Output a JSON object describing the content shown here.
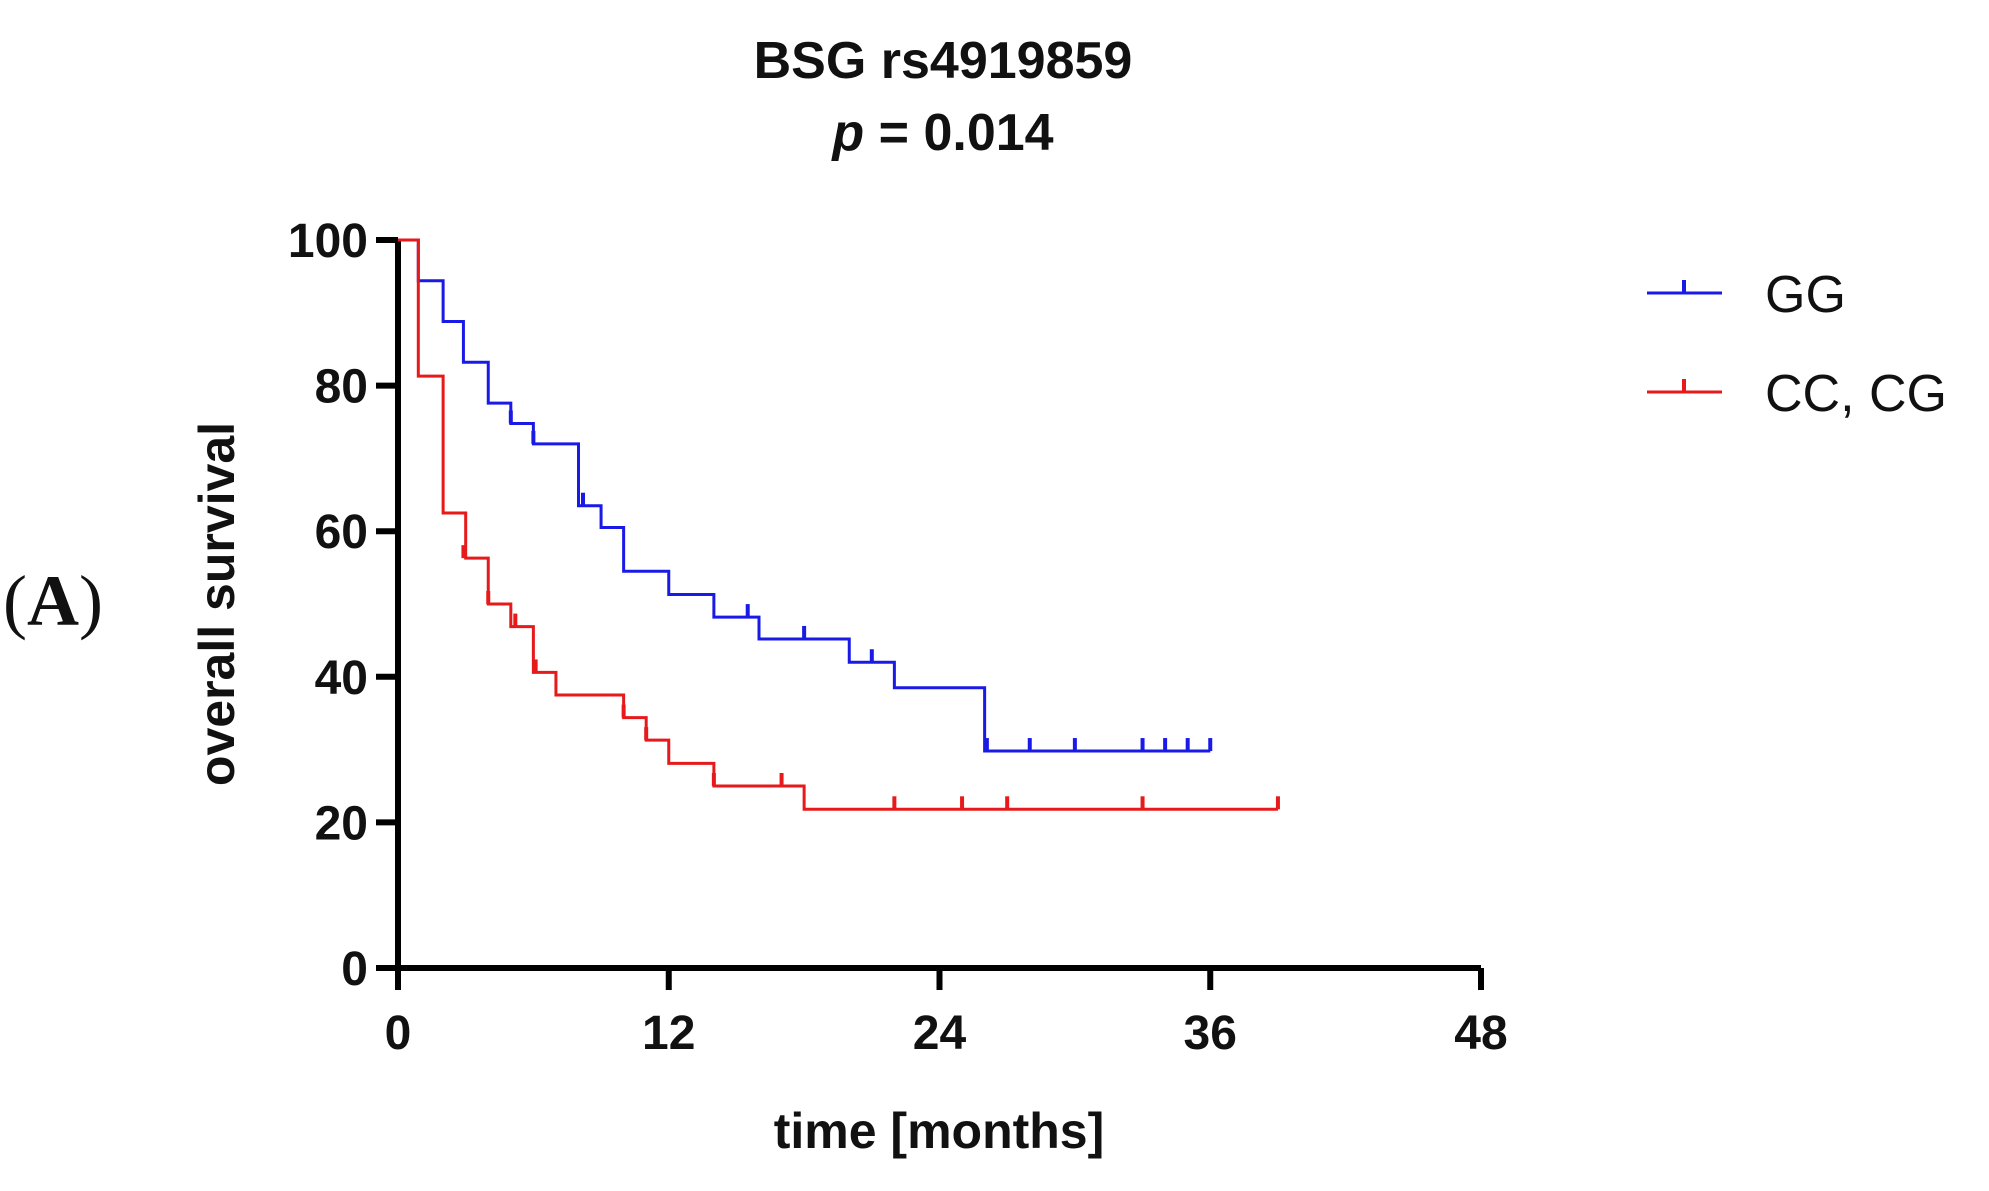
{
  "panel_label": {
    "open": "(",
    "letter": "A",
    "close": ")"
  },
  "chart_data": {
    "type": "line",
    "subtype": "kaplan-meier",
    "title": "BSG rs4919859",
    "subtitle_italic": "p",
    "subtitle_rest": " = 0.014",
    "xlabel": "time [months]",
    "ylabel": "overall survival",
    "xlim": [
      0,
      48
    ],
    "ylim": [
      0,
      100
    ],
    "xticks": [
      0,
      12,
      24,
      36,
      48
    ],
    "yticks": [
      0,
      20,
      40,
      60,
      80,
      100
    ],
    "legend_position": "top-right",
    "series": [
      {
        "name": "GG",
        "color": "#1a1ae6",
        "steps": [
          [
            0,
            100
          ],
          [
            0.9,
            94.4
          ],
          [
            2,
            88.8
          ],
          [
            2.9,
            83.2
          ],
          [
            4,
            77.6
          ],
          [
            5,
            74.8
          ],
          [
            6,
            72
          ],
          [
            8,
            63.5
          ],
          [
            9,
            60.5
          ],
          [
            10,
            54.5
          ],
          [
            12,
            51.3
          ],
          [
            14,
            48.2
          ],
          [
            16,
            45.2
          ],
          [
            20,
            42
          ],
          [
            21.5,
            42
          ],
          [
            22,
            38.5
          ],
          [
            26,
            29.8
          ],
          [
            36,
            29.8
          ]
        ],
        "censored": [
          [
            5,
            74.8
          ],
          [
            6,
            72
          ],
          [
            8.2,
            63.5
          ],
          [
            15.5,
            48.2
          ],
          [
            18,
            45.2
          ],
          [
            21,
            42
          ],
          [
            26.1,
            29.8
          ],
          [
            28,
            29.8
          ],
          [
            30,
            29.8
          ],
          [
            33,
            29.8
          ],
          [
            34,
            29.8
          ],
          [
            35,
            29.8
          ],
          [
            36,
            29.8
          ]
        ]
      },
      {
        "name": "CC, CG",
        "color": "#e61a1a",
        "steps": [
          [
            0,
            100
          ],
          [
            0.9,
            81.3
          ],
          [
            2,
            62.5
          ],
          [
            3,
            56.3
          ],
          [
            4,
            50
          ],
          [
            5,
            46.9
          ],
          [
            6,
            40.6
          ],
          [
            7,
            37.5
          ],
          [
            10,
            34.4
          ],
          [
            11,
            31.3
          ],
          [
            12,
            28.1
          ],
          [
            14,
            25
          ],
          [
            18,
            21.8
          ],
          [
            39,
            21.8
          ]
        ],
        "censored": [
          [
            2.9,
            56.3
          ],
          [
            4,
            50
          ],
          [
            5.2,
            46.9
          ],
          [
            6.1,
            40.6
          ],
          [
            10,
            34.4
          ],
          [
            11,
            31.3
          ],
          [
            14,
            25
          ],
          [
            17,
            25
          ],
          [
            22,
            21.8
          ],
          [
            25,
            21.8
          ],
          [
            27,
            21.8
          ],
          [
            33,
            21.8
          ],
          [
            39,
            21.8
          ]
        ]
      }
    ]
  }
}
